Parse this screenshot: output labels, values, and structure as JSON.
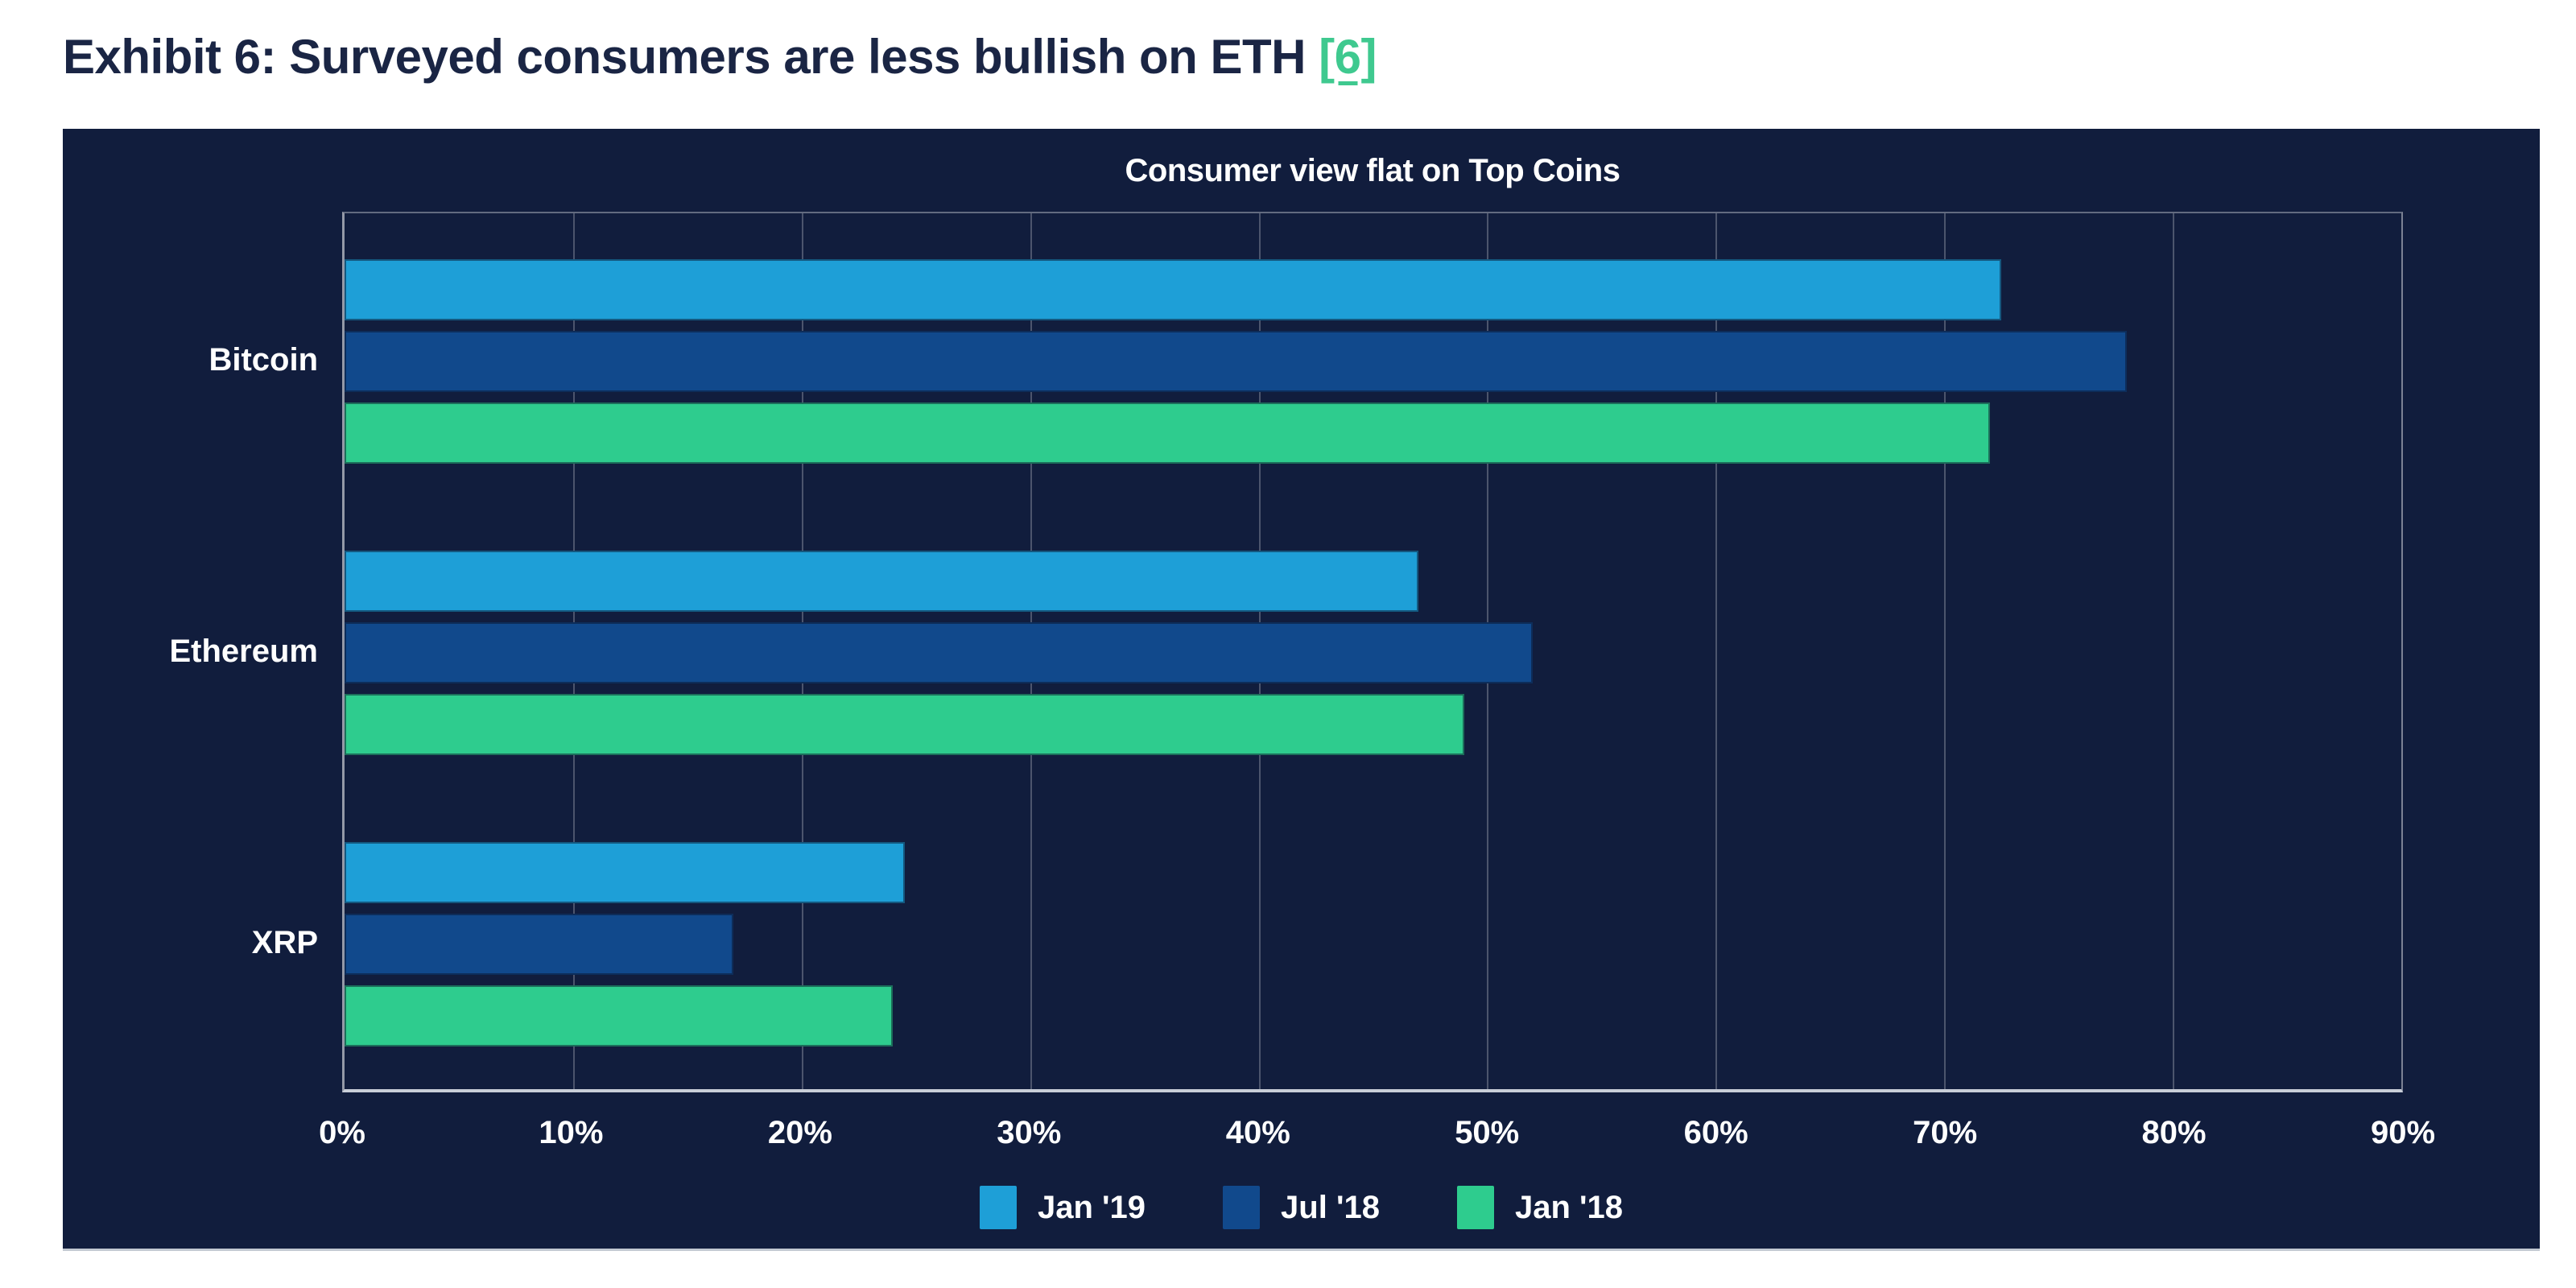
{
  "page": {
    "background": "#ffffff"
  },
  "header": {
    "title": "Exhibit 6: Surveyed consumers are less bullish on ETH",
    "link_label": "[6]",
    "title_color": "#1a2544",
    "link_color": "#3fc98f"
  },
  "panel": {
    "background": "#111d3d"
  },
  "chart_data": {
    "type": "bar",
    "orientation": "horizontal",
    "title": "Consumer view flat on Top Coins",
    "categories": [
      "Bitcoin",
      "Ethereum",
      "XRP"
    ],
    "series": [
      {
        "name": "Jan '19",
        "color": "#1e9fd7",
        "values": [
          72.5,
          47,
          24.5
        ]
      },
      {
        "name": "Jul '18",
        "color": "#11498c",
        "values": [
          78,
          52,
          17
        ]
      },
      {
        "name": "Jan '18",
        "color": "#2ecc8e",
        "values": [
          72,
          49,
          24
        ]
      }
    ],
    "x_ticks": [
      "0%",
      "10%",
      "20%",
      "30%",
      "40%",
      "50%",
      "60%",
      "70%",
      "80%",
      "90%"
    ],
    "xlim": [
      0,
      90
    ],
    "unit": "%",
    "grid": "vertical",
    "legend_position": "bottom",
    "background": "#111d3d",
    "text_color": "#ffffff"
  }
}
